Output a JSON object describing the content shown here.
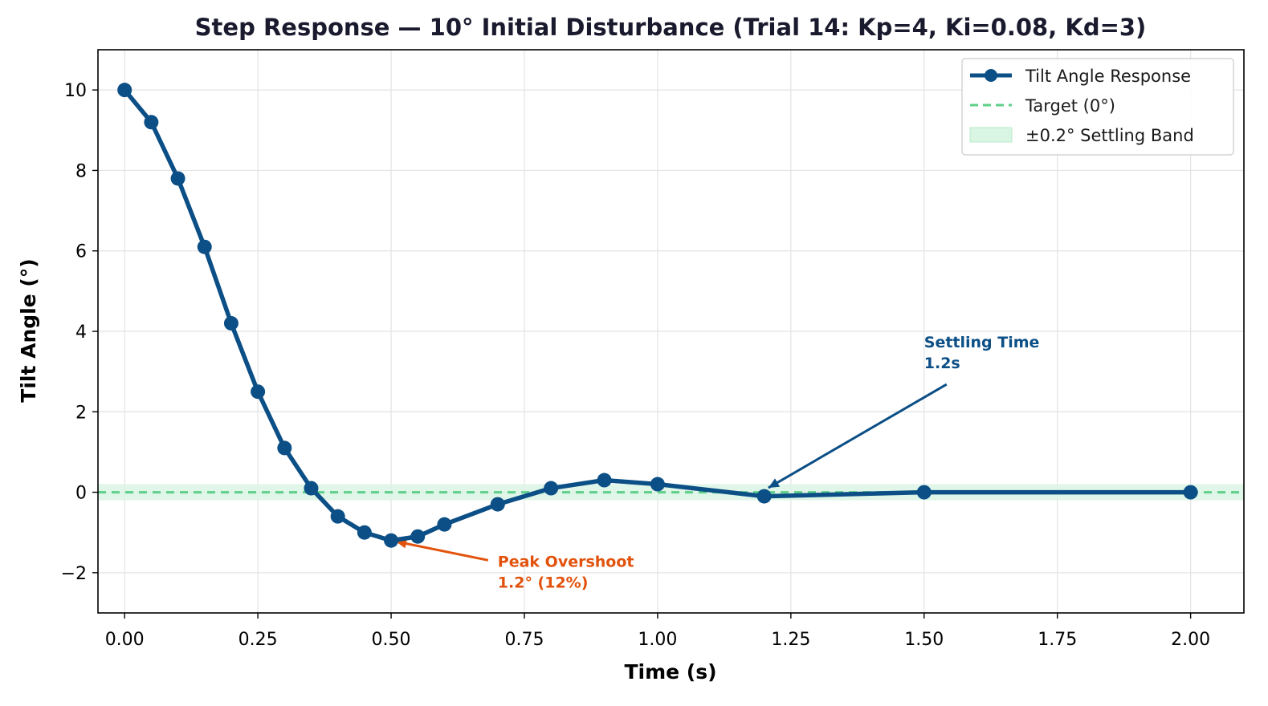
{
  "chart_data": {
    "type": "line",
    "title": "Step Response — 10° Initial Disturbance (Trial 14: Kp=4, Ki=0.08, Kd=3)",
    "xlabel": "Time (s)",
    "ylabel": "Tilt Angle (°)",
    "xlim": [
      -0.05,
      2.1
    ],
    "ylim": [
      -3,
      11
    ],
    "grid": true,
    "legend_position": "top-right",
    "x_ticks": [
      0.0,
      0.25,
      0.5,
      0.75,
      1.0,
      1.25,
      1.5,
      1.75,
      2.0
    ],
    "x_tick_labels": [
      "0.00",
      "0.25",
      "0.50",
      "0.75",
      "1.00",
      "1.25",
      "1.50",
      "1.75",
      "2.00"
    ],
    "y_ticks": [
      -2,
      0,
      2,
      4,
      6,
      8,
      10
    ],
    "y_tick_labels": [
      "−2",
      "0",
      "2",
      "4",
      "6",
      "8",
      "10"
    ],
    "series": [
      {
        "name": "Tilt Angle Response",
        "color": "#0b4f86",
        "x": [
          0.0,
          0.05,
          0.1,
          0.15,
          0.2,
          0.25,
          0.3,
          0.35,
          0.4,
          0.45,
          0.5,
          0.55,
          0.6,
          0.7,
          0.8,
          0.9,
          1.0,
          1.2,
          1.5,
          2.0
        ],
        "y": [
          10,
          9.2,
          7.8,
          6.1,
          4.2,
          2.5,
          1.1,
          0.1,
          -0.6,
          -1.0,
          -1.2,
          -1.1,
          -0.8,
          -0.3,
          0.1,
          0.3,
          0.2,
          -0.1,
          0.0,
          0.0
        ]
      }
    ],
    "reference_line": {
      "name": "Target (0°)",
      "y": 0,
      "color": "#5fd08a"
    },
    "band": {
      "name": "±0.2° Settling Band",
      "ymin": -0.2,
      "ymax": 0.2,
      "color": "#d9f5e4"
    },
    "annotations": [
      {
        "lines": [
          "Peak Overshoot",
          "1.2° (12%)"
        ],
        "color": "#e2520c",
        "point": [
          0.5,
          -1.2
        ],
        "text_at": [
          0.7,
          -1.85
        ]
      },
      {
        "lines": [
          "Settling Time",
          "1.2s"
        ],
        "color": "#0b4f86",
        "point": [
          1.2,
          0.05
        ],
        "text_at": [
          1.5,
          3.6
        ]
      }
    ]
  }
}
